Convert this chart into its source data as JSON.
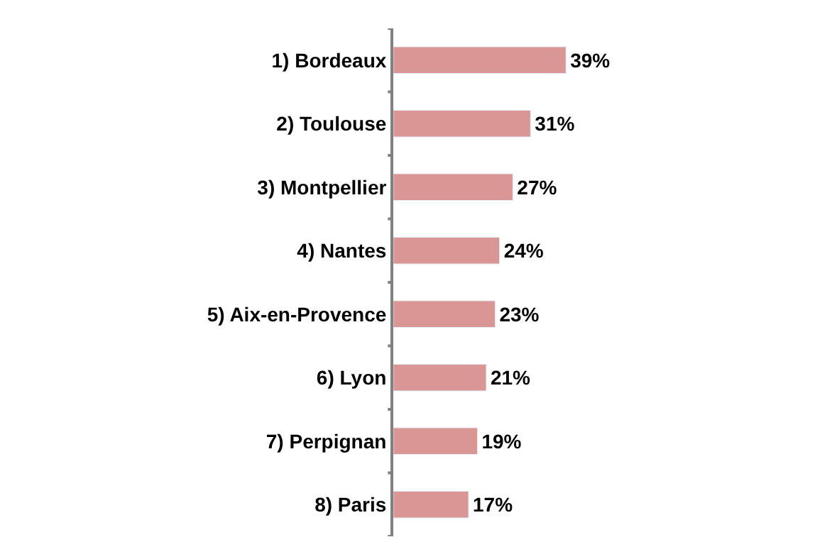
{
  "chart_data": {
    "type": "bar",
    "orientation": "horizontal",
    "data_labels": true,
    "legend": false,
    "categories": [
      "1) Bordeaux",
      "2) Toulouse",
      "3) Montpellier",
      "4) Nantes",
      "5) Aix-en-Provence",
      "6) Lyon",
      "7) Perpignan",
      "8) Paris"
    ],
    "values": [
      39,
      31,
      27,
      24,
      23,
      21,
      19,
      17
    ],
    "value_labels": [
      "39%",
      "31%",
      "27%",
      "24%",
      "23%",
      "21%",
      "19%",
      "17%"
    ],
    "color": "#d99694"
  }
}
